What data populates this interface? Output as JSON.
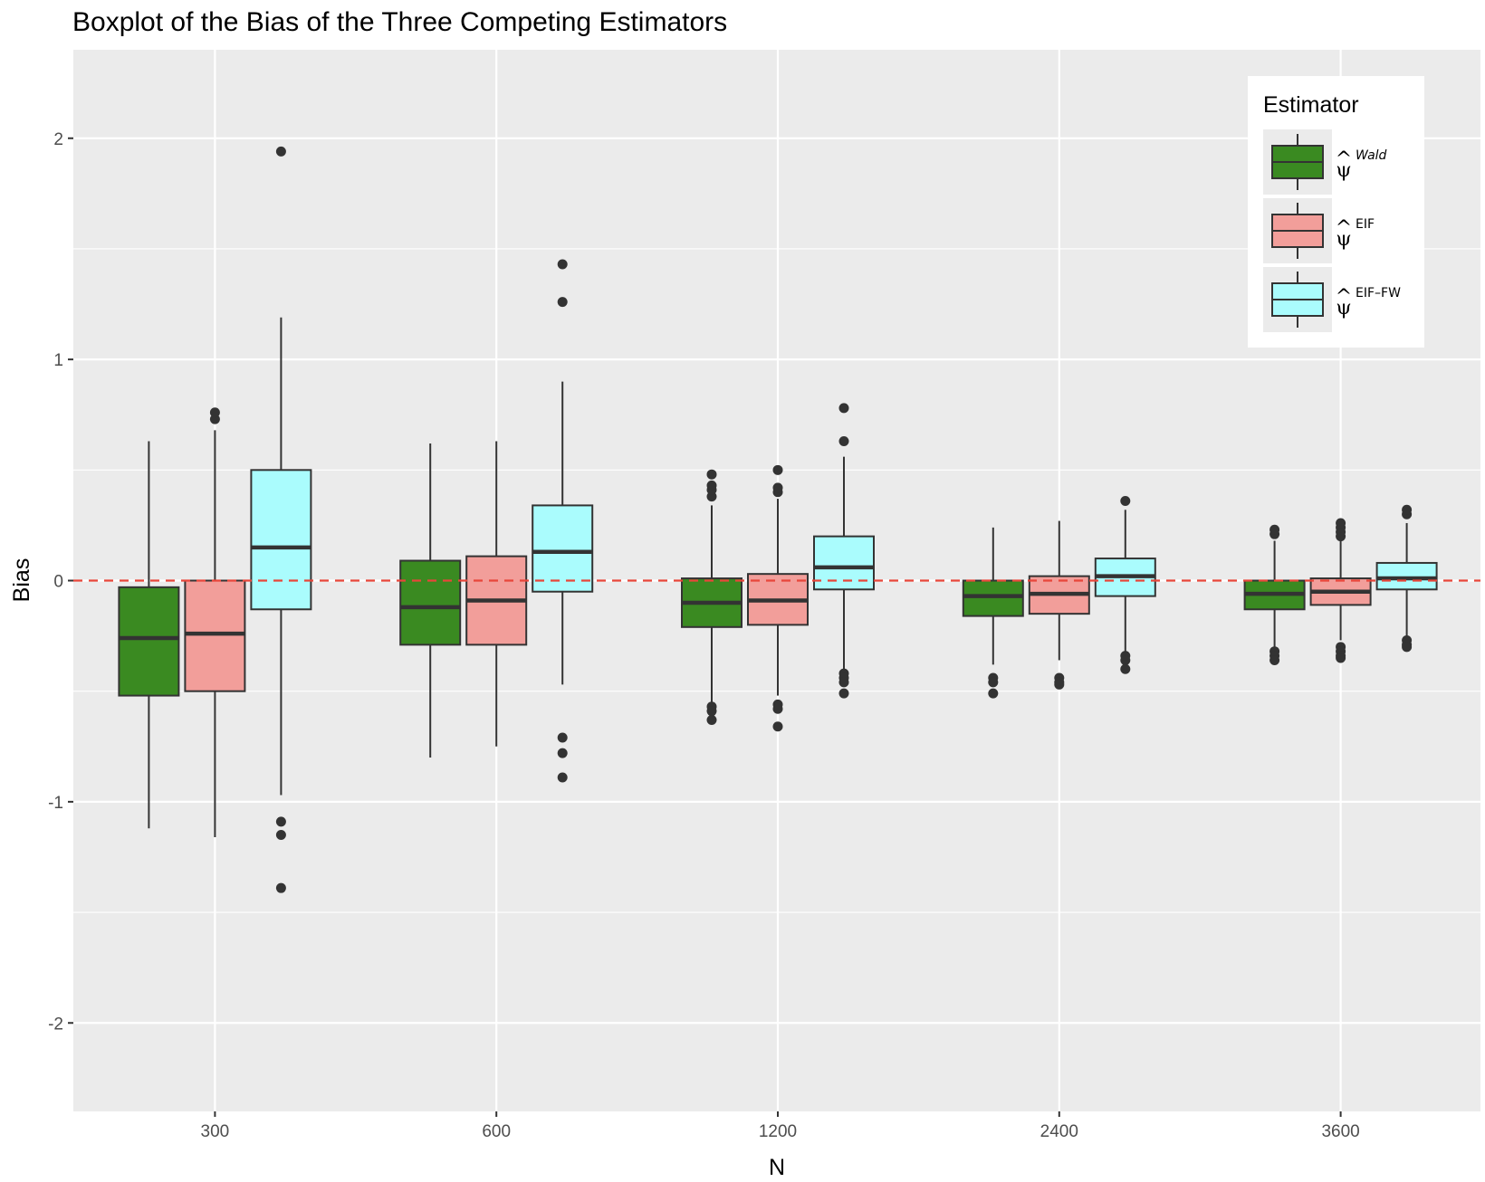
{
  "chart_data": {
    "type": "boxplot",
    "title": "Boxplot of the Bias of the Three Competing Estimators",
    "xlabel": "N",
    "ylabel": "Bias",
    "categories": [
      "300",
      "600",
      "1200",
      "2400",
      "3600"
    ],
    "ylim": [
      -2.4,
      2.4
    ],
    "yticks": [
      -2,
      -1,
      0,
      1,
      2
    ],
    "ytick_labels": [
      "-2",
      "-1",
      "0",
      "1",
      "2"
    ],
    "reference_line": {
      "y": 0,
      "style": "dashed",
      "color": "#e8463a"
    },
    "legend": {
      "title": "Estimator",
      "position": "top-right",
      "entries": [
        {
          "base": "ψ",
          "hat": "^",
          "sup": "Wald",
          "sup_style": "italic"
        },
        {
          "base": "ψ",
          "hat": "^",
          "sup": "EIF",
          "sup_style": "normal"
        },
        {
          "base": "ψ",
          "hat": "^",
          "sup": "EIF–FW",
          "sup_style": "normal"
        }
      ]
    },
    "series": [
      {
        "name": "Wald",
        "color": "#3a8a21",
        "boxes": [
          {
            "min": -1.12,
            "q1": -0.52,
            "median": -0.26,
            "q3": -0.03,
            "max": 0.63,
            "outliers": []
          },
          {
            "min": -0.8,
            "q1": -0.29,
            "median": -0.12,
            "q3": 0.09,
            "max": 0.62,
            "outliers": []
          },
          {
            "min": -0.55,
            "q1": -0.21,
            "median": -0.1,
            "q3": 0.01,
            "max": 0.34,
            "outliers": [
              0.38,
              0.41,
              0.43,
              0.48,
              -0.57,
              -0.59,
              -0.63
            ]
          },
          {
            "min": -0.38,
            "q1": -0.16,
            "median": -0.07,
            "q3": 0.0,
            "max": 0.24,
            "outliers": [
              -0.44,
              -0.46,
              -0.51
            ]
          },
          {
            "min": -0.3,
            "q1": -0.13,
            "median": -0.06,
            "q3": 0.0,
            "max": 0.18,
            "outliers": [
              0.21,
              0.23,
              -0.32,
              -0.34,
              -0.36
            ]
          }
        ]
      },
      {
        "name": "EIF",
        "color": "#f29e9a",
        "boxes": [
          {
            "min": -1.16,
            "q1": -0.5,
            "median": -0.24,
            "q3": 0.0,
            "max": 0.68,
            "outliers": [
              0.73,
              0.76
            ]
          },
          {
            "min": -0.75,
            "q1": -0.29,
            "median": -0.09,
            "q3": 0.11,
            "max": 0.63,
            "outliers": []
          },
          {
            "min": -0.52,
            "q1": -0.2,
            "median": -0.09,
            "q3": 0.03,
            "max": 0.37,
            "outliers": [
              0.4,
              0.42,
              0.5,
              -0.56,
              -0.58,
              -0.66
            ]
          },
          {
            "min": -0.36,
            "q1": -0.15,
            "median": -0.06,
            "q3": 0.02,
            "max": 0.27,
            "outliers": [
              -0.44,
              -0.46,
              -0.47
            ]
          },
          {
            "min": -0.27,
            "q1": -0.11,
            "median": -0.05,
            "q3": 0.01,
            "max": 0.19,
            "outliers": [
              0.2,
              0.22,
              0.24,
              0.26,
              -0.3,
              -0.32,
              -0.34,
              -0.35
            ]
          }
        ]
      },
      {
        "name": "EIF–FW",
        "color": "#aafcfd",
        "boxes": [
          {
            "min": -0.97,
            "q1": -0.13,
            "median": 0.15,
            "q3": 0.5,
            "max": 1.19,
            "outliers": [
              1.94,
              -1.09,
              -1.15,
              -1.39
            ]
          },
          {
            "min": -0.47,
            "q1": -0.05,
            "median": 0.13,
            "q3": 0.34,
            "max": 0.9,
            "outliers": [
              1.26,
              1.43,
              -0.71,
              -0.78,
              -0.89
            ]
          },
          {
            "min": -0.4,
            "q1": -0.04,
            "median": 0.06,
            "q3": 0.2,
            "max": 0.56,
            "outliers": [
              0.63,
              0.78,
              -0.42,
              -0.44,
              -0.46,
              -0.51
            ]
          },
          {
            "min": -0.32,
            "q1": -0.07,
            "median": 0.02,
            "q3": 0.1,
            "max": 0.32,
            "outliers": [
              0.36,
              -0.34,
              -0.36,
              -0.4
            ]
          },
          {
            "min": -0.25,
            "q1": -0.04,
            "median": 0.01,
            "q3": 0.08,
            "max": 0.26,
            "outliers": [
              0.3,
              0.32,
              -0.27,
              -0.29,
              -0.3
            ]
          }
        ]
      }
    ]
  }
}
